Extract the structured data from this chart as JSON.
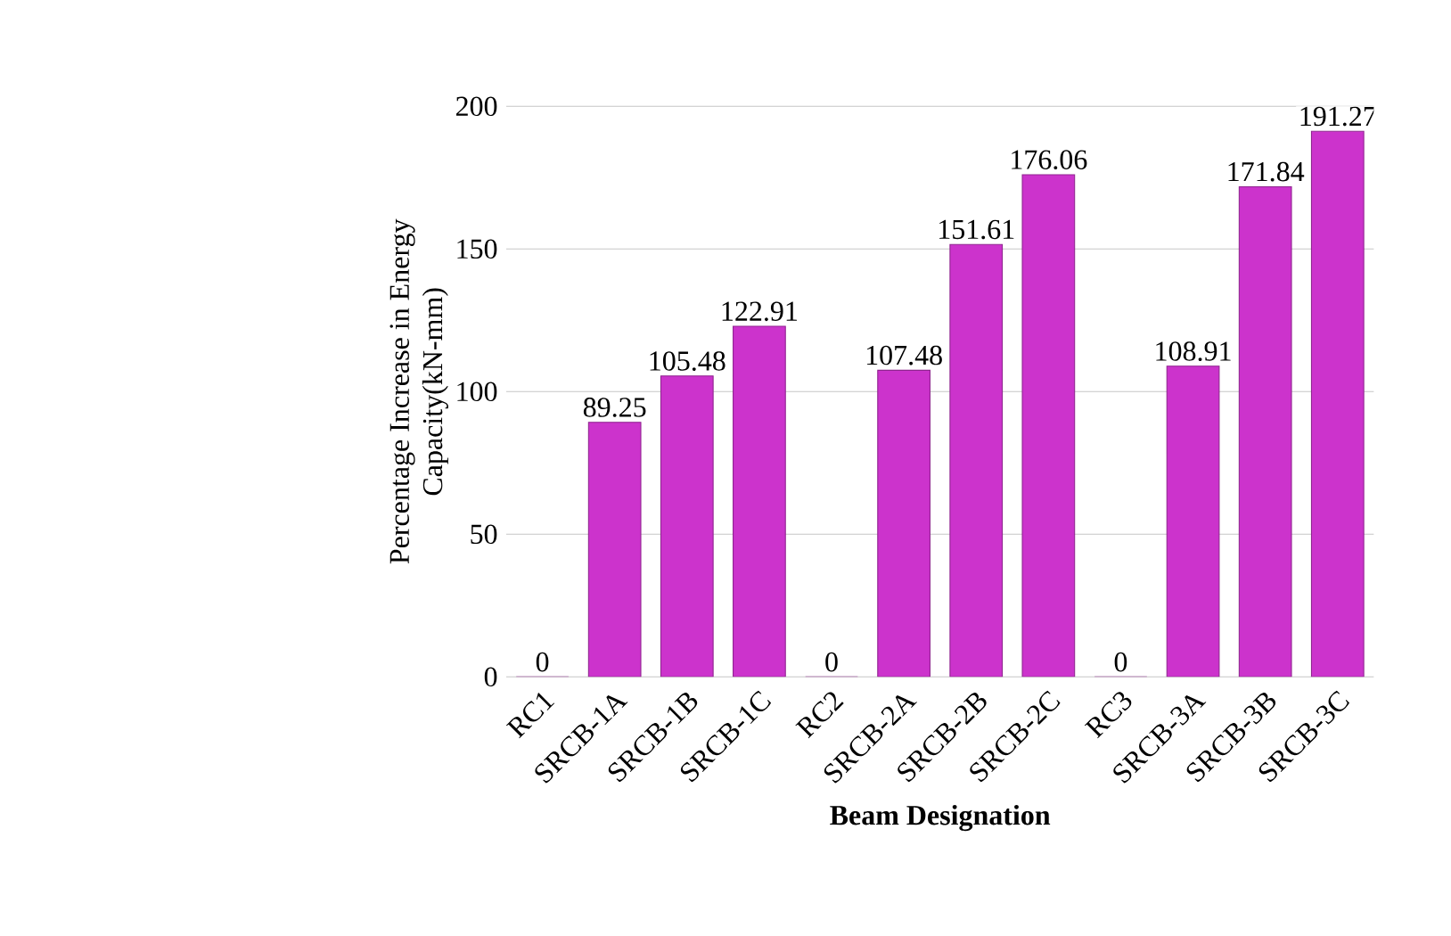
{
  "chart_data": {
    "type": "bar",
    "xlabel": "Beam Designation",
    "ylabel": "Percentage Increase in  Energy Capacity(kN-mm)",
    "categories": [
      "RC1",
      "SRCB-1A",
      "SRCB-1B",
      "SRCB-1C",
      "RC2",
      "SRCB-2A",
      "SRCB-2B",
      "SRCB-2C",
      "RC3",
      "SRCB-3A",
      "SRCB-3B",
      "SRCB-3C"
    ],
    "values": [
      0,
      89.25,
      105.48,
      122.91,
      0,
      107.48,
      151.61,
      176.06,
      0,
      108.91,
      171.84,
      191.27
    ],
    "color": "#cc33cc",
    "ylim": [
      0,
      200
    ],
    "yticks": [
      0,
      50,
      100,
      150,
      200
    ],
    "grid": "y",
    "data_labels": true
  }
}
